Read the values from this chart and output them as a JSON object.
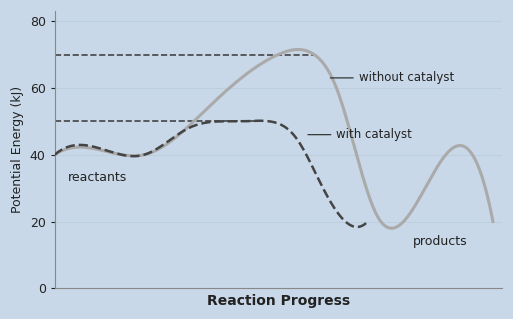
{
  "xlabel": "Reaction Progress",
  "ylabel": "Potential Energy (kJ)",
  "ylim": [
    0,
    83
  ],
  "xlim": [
    0,
    10
  ],
  "yticks": [
    0,
    20,
    40,
    60,
    80
  ],
  "reactant_level": 40,
  "product_level": 20,
  "peak_no_cat": 70,
  "peak_with_cat": 50,
  "dashed_line1_y": 70,
  "dashed_line2_y": 50,
  "label_reactants": "reactants",
  "label_products": "products",
  "label_no_cat": "without catalyst",
  "label_with_cat": "with catalyst",
  "curve_color_no_cat": "#aaaaaa",
  "curve_color_with_cat": "#444444",
  "dashed_color": "#444444",
  "background_color": "#c8d8e8",
  "axis_bg_color": "#c8d8e8",
  "grid_color": "#b0c4d4",
  "font_color": "#222222"
}
